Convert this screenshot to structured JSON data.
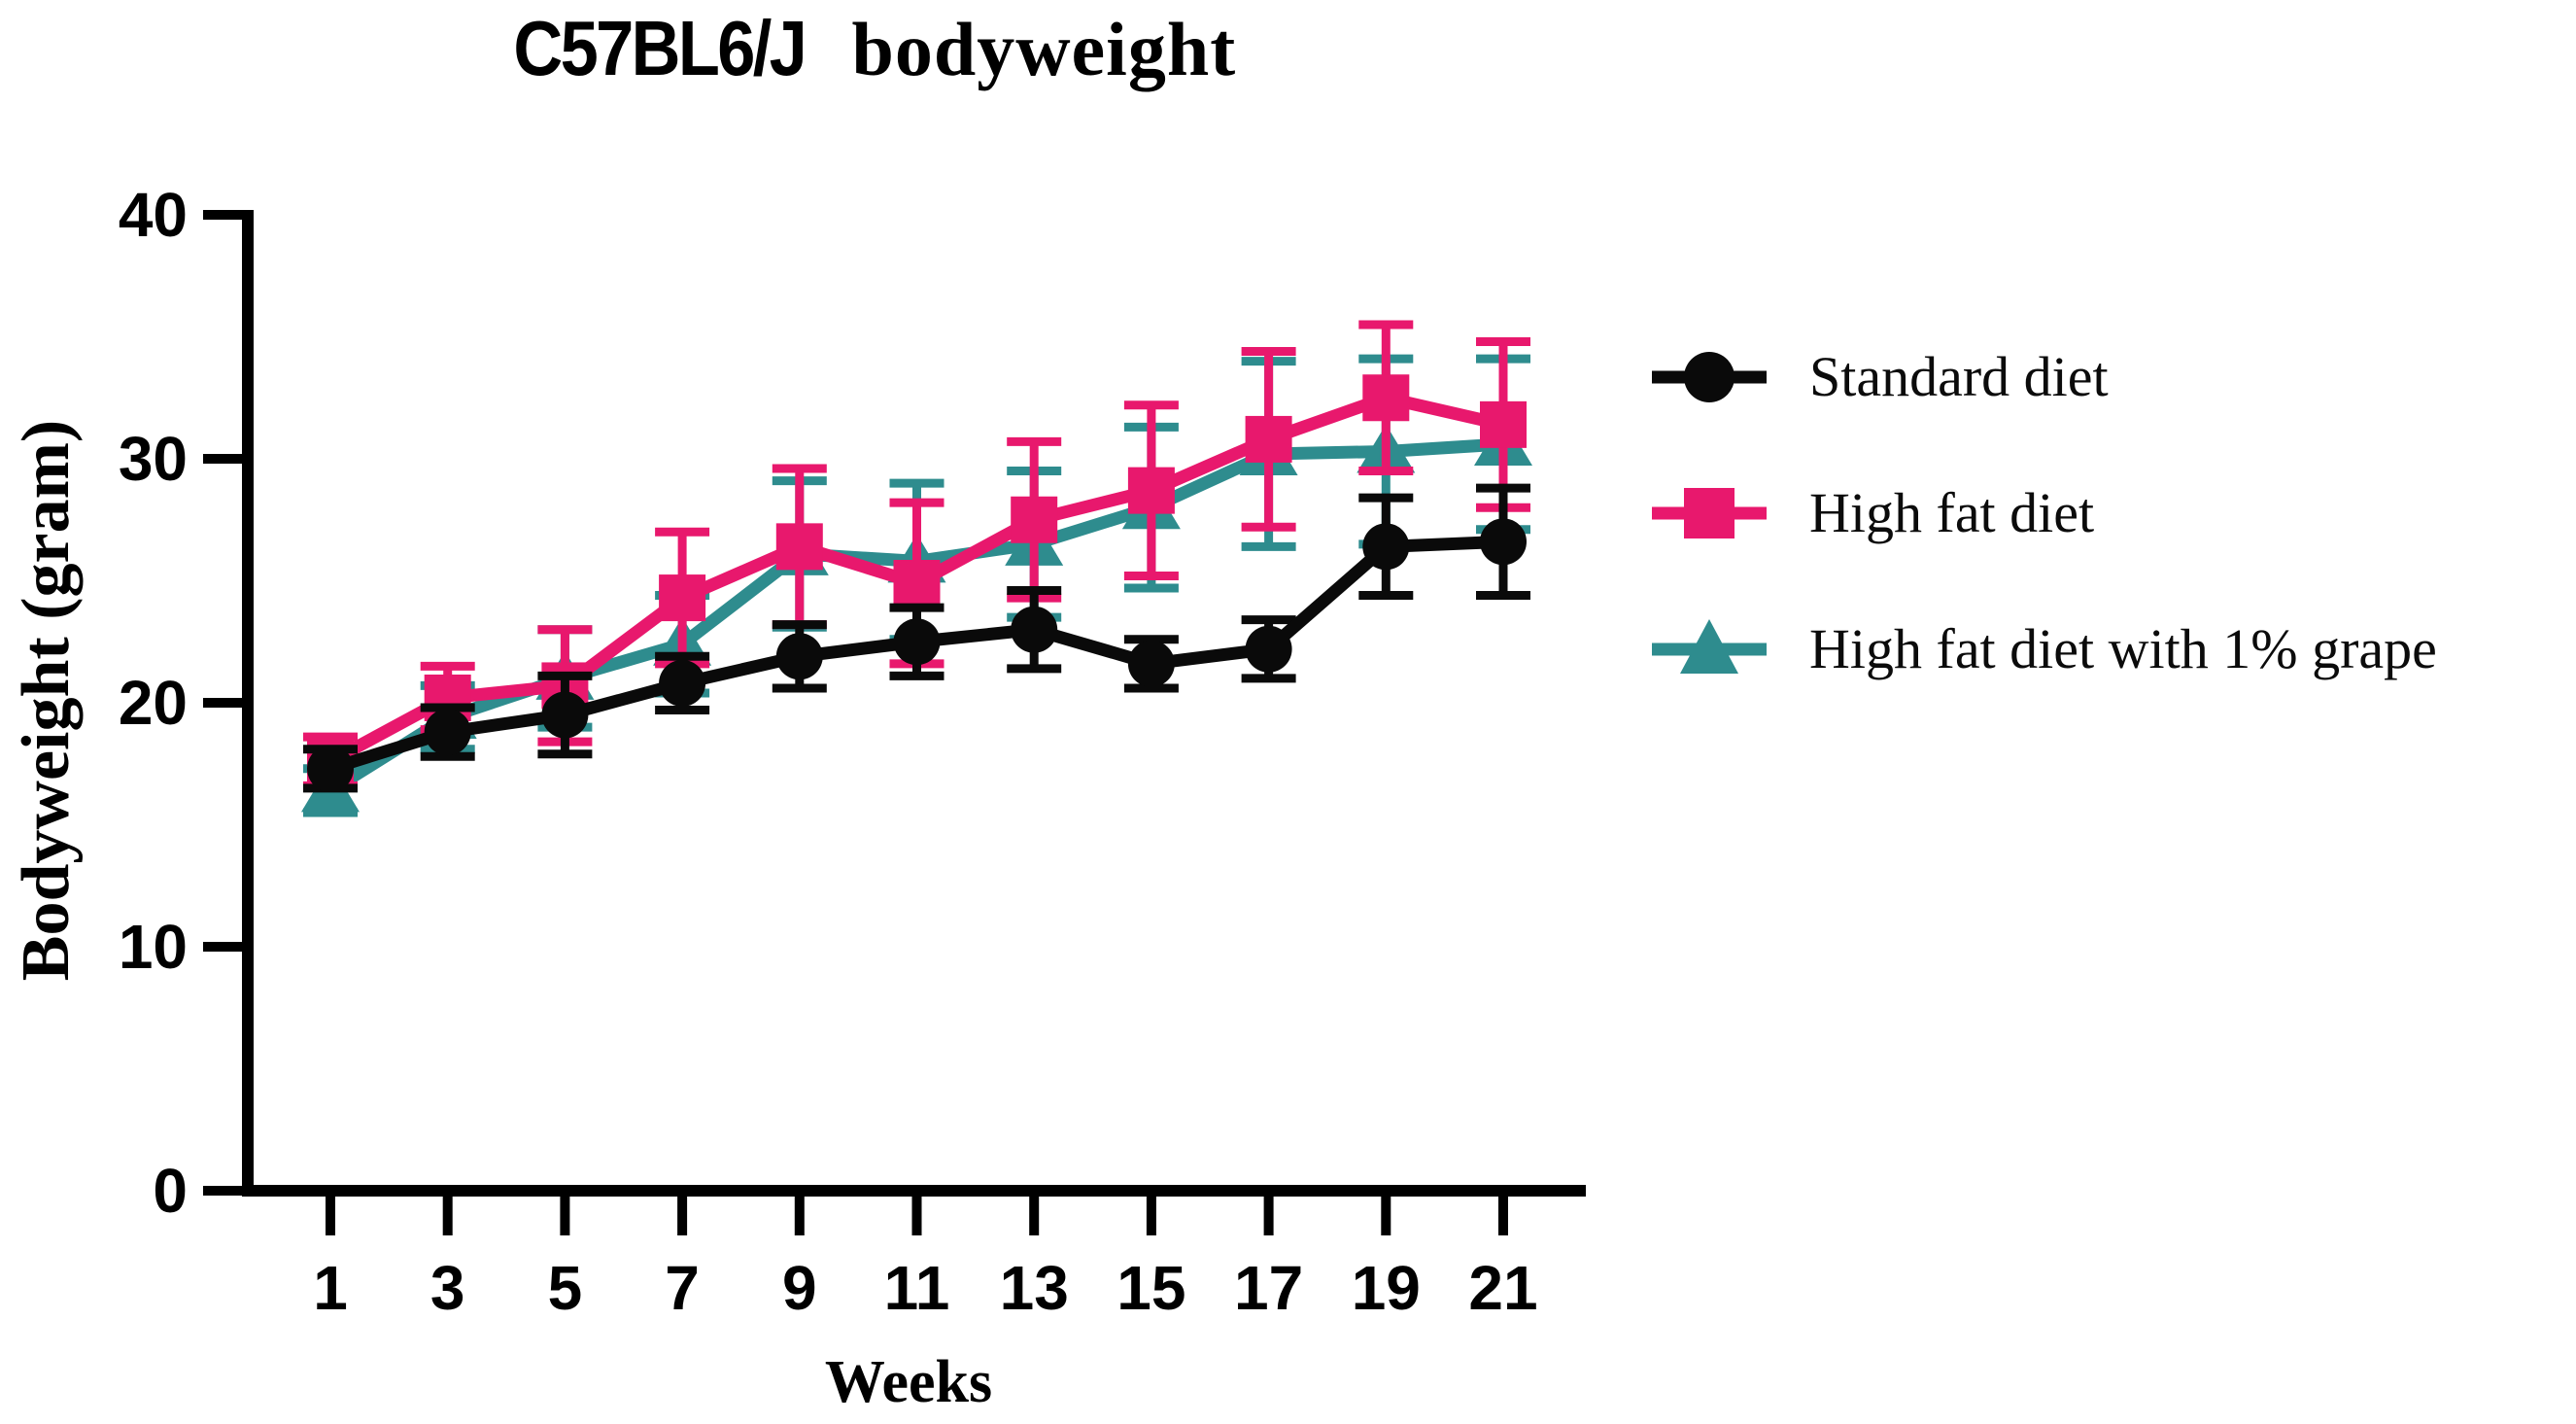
{
  "title": {
    "part1": "C57BL6/J",
    "part2": "bodyweight",
    "full": "C57BL6/J bodyweight"
  },
  "colors": {
    "background": "#ffffff",
    "axis": "#000000",
    "text": "#000000",
    "standard_diet": "#0a0a0a",
    "high_fat_diet": "#e8186d",
    "high_fat_grape": "#2e8c8e"
  },
  "chart_data": {
    "type": "line",
    "title": "C57BL6/J bodyweight",
    "xlabel": "Weeks",
    "ylabel": "Bodyweight (gram)",
    "x": [
      1,
      3,
      5,
      7,
      9,
      11,
      13,
      15,
      17,
      19,
      21
    ],
    "xtick_labels": [
      "1",
      "3",
      "5",
      "7",
      "9",
      "11",
      "13",
      "15",
      "17",
      "19",
      "21"
    ],
    "yticks": [
      0,
      10,
      20,
      30,
      40
    ],
    "ylim": [
      0,
      40
    ],
    "grid": false,
    "legend_position": "right-outside",
    "error_bar_style": "symmetric with caps",
    "series": [
      {
        "name": "High fat diet with 1% grape",
        "slug": "high-fat-diet-with-1-percent-grape",
        "color": "#2e8c8e",
        "marker": "triangle",
        "values": [
          16.4,
          19.4,
          21.0,
          22.4,
          26.1,
          25.8,
          26.5,
          28.0,
          30.2,
          30.3,
          30.6
        ],
        "errors": [
          0.9,
          1.3,
          2.0,
          2.0,
          3.0,
          3.2,
          3.0,
          3.3,
          3.8,
          3.8,
          3.5
        ]
      },
      {
        "name": "High fat diet",
        "slug": "high-fat-diet",
        "color": "#e8186d",
        "marker": "square",
        "values": [
          17.6,
          20.2,
          20.7,
          24.3,
          26.4,
          24.9,
          27.5,
          28.7,
          30.8,
          32.5,
          31.4
        ],
        "errors": [
          1.0,
          1.3,
          2.3,
          2.7,
          3.2,
          3.3,
          3.2,
          3.5,
          3.6,
          3.0,
          3.4
        ]
      },
      {
        "name": "Standard diet",
        "slug": "standard-diet",
        "color": "#0a0a0a",
        "marker": "circle",
        "values": [
          17.3,
          18.8,
          19.5,
          20.8,
          21.9,
          22.5,
          23.0,
          21.6,
          22.2,
          26.4,
          26.6
        ],
        "errors": [
          0.8,
          1.0,
          1.6,
          1.1,
          1.3,
          1.4,
          1.6,
          1.0,
          1.2,
          2.0,
          2.2
        ]
      }
    ],
    "legend_order": [
      "Standard diet",
      "High fat diet",
      "High fat diet with 1% grape"
    ]
  }
}
